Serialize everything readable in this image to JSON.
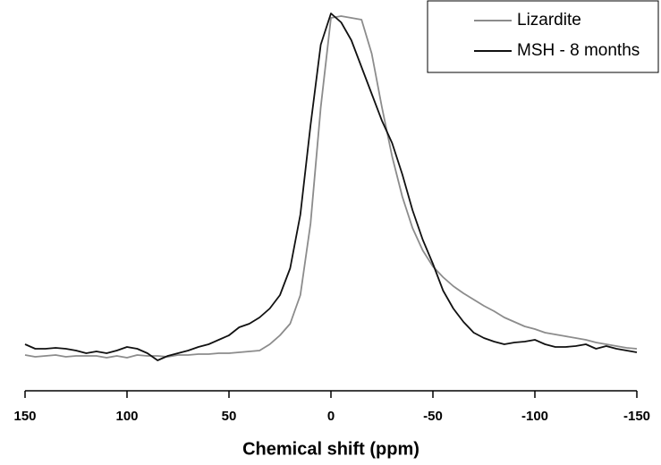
{
  "chart_data": {
    "type": "line",
    "x_label": "Chemical shift (ppm)",
    "x": [
      150,
      145,
      140,
      135,
      130,
      125,
      120,
      115,
      110,
      105,
      100,
      95,
      90,
      85,
      80,
      75,
      70,
      65,
      60,
      55,
      50,
      45,
      40,
      35,
      30,
      25,
      20,
      15,
      10,
      5,
      0,
      -5,
      -10,
      -15,
      -20,
      -25,
      -30,
      -35,
      -40,
      -45,
      -50,
      -55,
      -60,
      -65,
      -70,
      -75,
      -80,
      -85,
      -90,
      -95,
      -100,
      -105,
      -110,
      -115,
      -120,
      -125,
      -130,
      -135,
      -140,
      -145,
      -150
    ],
    "series": [
      {
        "name": "Lizardite",
        "color": "#8c8c8c",
        "values": [
          3,
          1,
          2,
          3,
          1,
          2,
          2,
          2,
          0,
          2,
          0,
          3,
          2,
          2,
          1,
          3,
          3,
          4,
          4,
          5,
          5,
          6,
          7,
          8,
          15,
          25,
          38,
          70,
          150,
          280,
          380,
          382,
          380,
          378,
          340,
          280,
          225,
          180,
          145,
          120,
          102,
          90,
          80,
          72,
          65,
          58,
          52,
          45,
          40,
          35,
          32,
          28,
          26,
          24,
          22,
          20,
          17,
          15,
          13,
          11,
          10
        ]
      },
      {
        "name": "MSH - 8 months",
        "color": "#111111",
        "values": [
          15,
          10,
          10,
          11,
          10,
          8,
          5,
          7,
          5,
          8,
          12,
          10,
          5,
          -3,
          2,
          5,
          8,
          12,
          15,
          20,
          25,
          34,
          38,
          45,
          55,
          70,
          100,
          160,
          260,
          350,
          385,
          375,
          355,
          325,
          295,
          265,
          240,
          205,
          165,
          132,
          105,
          75,
          55,
          40,
          28,
          22,
          18,
          15,
          17,
          18,
          20,
          15,
          12,
          12,
          13,
          15,
          10,
          13,
          10,
          8,
          6
        ]
      }
    ],
    "xlim": [
      150,
      -150
    ],
    "xticks": [
      150,
      100,
      50,
      0,
      -50,
      -100,
      -150
    ],
    "ylim": [
      -40,
      390
    ],
    "legend": "upper right"
  }
}
